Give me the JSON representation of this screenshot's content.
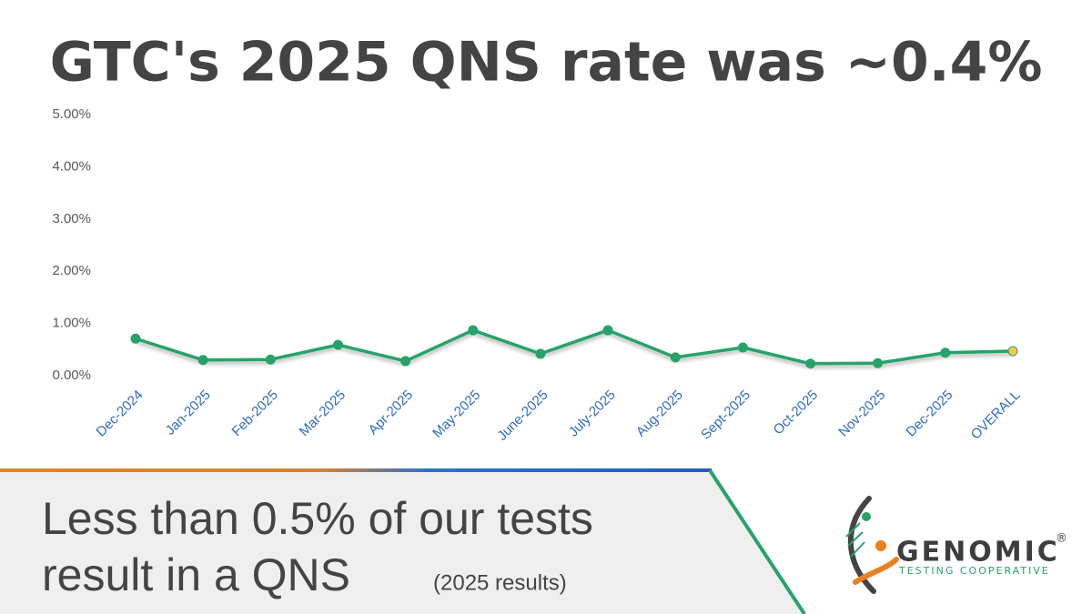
{
  "chart_data": {
    "type": "line",
    "title": "GTC's 2025 QNS rate was ~0.4%",
    "categories": [
      "Dec-2024",
      "Jan-2025",
      "Feb-2025",
      "Mar-2025",
      "Apr-2025",
      "May-2025",
      "June-2025",
      "July-2025",
      "Aug-2025",
      "Sept-2025",
      "Oct-2025",
      "Nov-2025",
      "Dec-2025",
      "OVERALL"
    ],
    "series": [
      {
        "name": "QNS rate",
        "color": "#27a36a",
        "values": [
          0.71,
          0.3,
          0.31,
          0.59,
          0.28,
          0.87,
          0.42,
          0.87,
          0.35,
          0.54,
          0.23,
          0.24,
          0.44,
          0.47
        ],
        "marker_colors": [
          "#27a36a",
          "#27a36a",
          "#27a36a",
          "#27a36a",
          "#27a36a",
          "#27a36a",
          "#27a36a",
          "#27a36a",
          "#27a36a",
          "#27a36a",
          "#27a36a",
          "#27a36a",
          "#27a36a",
          "#f2c94c"
        ]
      }
    ],
    "ylim": [
      0,
      5
    ],
    "yticks": [
      {
        "value": 0,
        "label": "0.00%"
      },
      {
        "value": 1,
        "label": "1.00%"
      },
      {
        "value": 2,
        "label": "2.00%"
      },
      {
        "value": 3,
        "label": "3.00%"
      },
      {
        "value": 4,
        "label": "4.00%"
      },
      {
        "value": 5,
        "label": "5.00%"
      }
    ],
    "grid": false
  },
  "caption": {
    "lines": [
      "Less than 0.5% of our tests",
      "result in a QNS"
    ],
    "note": "(2025 results)"
  },
  "logo": {
    "name": "GENOMIC",
    "mark": "®",
    "tagline": "TESTING COOPERATIVE"
  }
}
